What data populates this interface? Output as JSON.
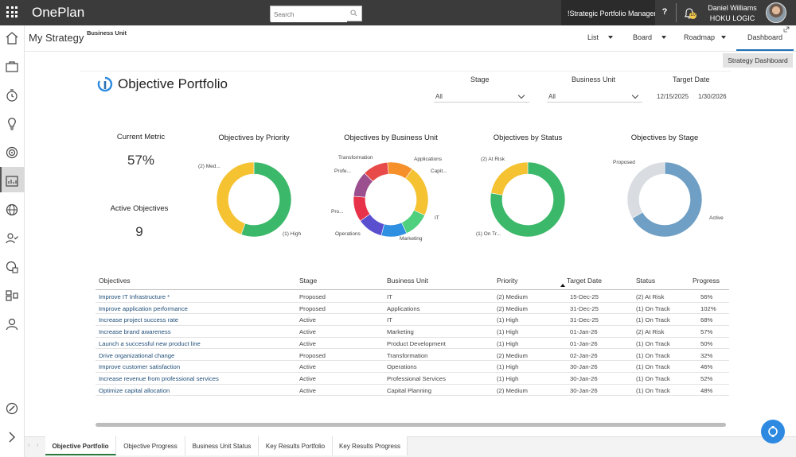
{
  "app": {
    "name": "OnePlan",
    "search_placeholder": "Search",
    "strategic_link": "!Strategic Portfolio Manager",
    "help_label": "?",
    "notification_count": "10",
    "user_name": "Daniel Williams",
    "org_name": "HOKU LOGIC"
  },
  "header": {
    "breadcrumb": "My Strategy",
    "business_unit_label": "Business Unit",
    "tabs": [
      "List",
      "Board",
      "Roadmap"
    ],
    "active_tab": "Dashboard",
    "strategy_dashboard_button": "Strategy Dashboard"
  },
  "report": {
    "title": "Objective Portfolio",
    "filters": {
      "stage_label": "Stage",
      "stage_value": "All",
      "bu_label": "Business Unit",
      "bu_value": "All",
      "target_label": "Target Date",
      "target_from": "12/15/2025",
      "target_to": "1/30/2026"
    },
    "kpis": [
      {
        "label": "Current Metric",
        "value": "57%"
      },
      {
        "label": "Active Objectives",
        "value": "9"
      }
    ]
  },
  "chart_data": [
    {
      "type": "pie",
      "title": "Objectives by Priority",
      "labels": [
        "(1) High",
        "(2) Med..."
      ],
      "values": [
        5,
        4
      ],
      "colors": [
        "#3bb869",
        "#f5c232"
      ]
    },
    {
      "type": "pie",
      "title": "Objectives by Business Unit",
      "labels": [
        "Applications",
        "Capit...",
        "IT",
        "Marketing",
        "Operations",
        "Pro...",
        "Profe...",
        "Transformation"
      ],
      "values": [
        1,
        1,
        2,
        1,
        1,
        1,
        1,
        1
      ],
      "colors": [
        "#e84a4a",
        "#f5902a",
        "#f5c232",
        "#4fd07e",
        "#2f8fe0",
        "#5a4fcf",
        "#e8324a",
        "#9b4f8f"
      ]
    },
    {
      "type": "pie",
      "title": "Objectives by Status",
      "labels": [
        "(1) On Tr...",
        "(2) At Risk"
      ],
      "values": [
        7,
        2
      ],
      "colors": [
        "#3bb869",
        "#f5c232"
      ]
    },
    {
      "type": "pie",
      "title": "Objectives by Stage",
      "labels": [
        "Active",
        "Proposed"
      ],
      "values": [
        6,
        3
      ],
      "colors": [
        "#6f9fc4",
        "#d9dde2"
      ]
    }
  ],
  "table": {
    "headers": [
      "Objectives",
      "Stage",
      "Business Unit",
      "Priority",
      "Target Date",
      "Status",
      "Progress"
    ],
    "rows": [
      [
        "Improve IT Infrastructure *",
        "Proposed",
        "IT",
        "(2) Medium",
        "15-Dec-25",
        "(2) At Risk",
        "56%"
      ],
      [
        "Improve application performance",
        "Proposed",
        "Applications",
        "(2) Medium",
        "31-Dec-25",
        "(1) On Track",
        "102%"
      ],
      [
        "Increase project success rate",
        "Active",
        "IT",
        "(1) High",
        "31-Dec-25",
        "(1) On Track",
        "68%"
      ],
      [
        "Increase brand awareness",
        "Active",
        "Marketing",
        "(1) High",
        "01-Jan-26",
        "(2) At Risk",
        "57%"
      ],
      [
        "Launch a successful new product line",
        "Active",
        "Product Development",
        "(1) High",
        "01-Jan-26",
        "(1) On Track",
        "50%"
      ],
      [
        "Drive organizational change",
        "Proposed",
        "Transformation",
        "(2) Medium",
        "02-Jan-26",
        "(1) On Track",
        "32%"
      ],
      [
        "Improve customer satisfaction",
        "Active",
        "Operations",
        "(1) High",
        "30-Jan-26",
        "(1) On Track",
        "46%"
      ],
      [
        "Increase revenue from professional services",
        "Active",
        "Professional Services",
        "(1) High",
        "30-Jan-26",
        "(1) On Track",
        "52%"
      ],
      [
        "Optimize capital allocation",
        "Active",
        "Capital Planning",
        "(2) Medium",
        "30-Jan-26",
        "(1) On Track",
        "48%"
      ]
    ]
  },
  "bottom_tabs": [
    "Objective Portfolio",
    "Objective Progress",
    "Business Unit Status",
    "Key Results Portfolio",
    "Key Results Progress"
  ]
}
